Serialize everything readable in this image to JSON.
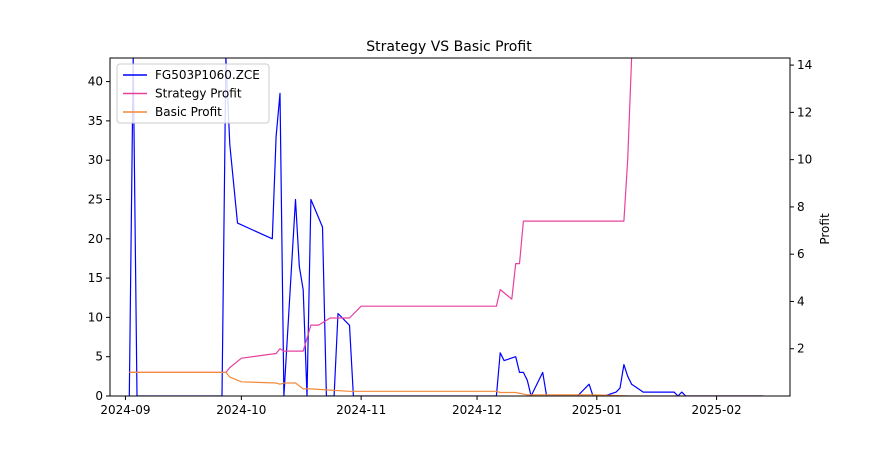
{
  "chart_data": {
    "type": "line",
    "title": "Strategy VS Basic Profit",
    "xlabel": "",
    "ylabel_left": "",
    "ylabel_right": "Profit",
    "x_ticks": [
      "2024-09",
      "2024-10",
      "2024-11",
      "2024-12",
      "2025-01",
      "2025-02"
    ],
    "x_range": [
      "2024-08-28",
      "2025-02-20"
    ],
    "ylim_left": [
      0,
      43
    ],
    "ylim_right": [
      0,
      14.3
    ],
    "y_ticks_left": [
      0,
      5,
      10,
      15,
      20,
      25,
      30,
      35,
      40
    ],
    "y_ticks_right": [
      2,
      4,
      6,
      8,
      10,
      12,
      14
    ],
    "grid": false,
    "legend_position": "top-left",
    "series": [
      {
        "name": "FG503P1060.ZCE",
        "axis": "left",
        "color": "#0000ff",
        "points": [
          [
            "2024-09-02",
            0
          ],
          [
            "2024-09-03",
            43
          ],
          [
            "2024-09-04",
            0
          ],
          [
            "2024-09-26",
            0
          ],
          [
            "2024-09-27",
            43
          ],
          [
            "2024-09-28",
            32
          ],
          [
            "2024-09-30",
            22
          ],
          [
            "2024-10-09",
            20
          ],
          [
            "2024-10-10",
            33
          ],
          [
            "2024-10-11",
            38.5
          ],
          [
            "2024-10-12",
            0
          ],
          [
            "2024-10-15",
            25
          ],
          [
            "2024-10-16",
            16.5
          ],
          [
            "2024-10-17",
            13.5
          ],
          [
            "2024-10-18",
            0
          ],
          [
            "2024-10-19",
            25
          ],
          [
            "2024-10-22",
            21.5
          ],
          [
            "2024-10-23",
            0
          ],
          [
            "2024-10-25",
            0
          ],
          [
            "2024-10-26",
            10.5
          ],
          [
            "2024-10-29",
            9
          ],
          [
            "2024-10-30",
            0
          ],
          [
            "2024-12-06",
            0
          ],
          [
            "2024-12-07",
            5.5
          ],
          [
            "2024-12-08",
            4.5
          ],
          [
            "2024-12-11",
            5
          ],
          [
            "2024-12-12",
            3
          ],
          [
            "2024-12-13",
            3
          ],
          [
            "2024-12-14",
            2
          ],
          [
            "2024-12-15",
            0
          ],
          [
            "2024-12-18",
            3
          ],
          [
            "2024-12-19",
            0
          ],
          [
            "2024-12-27",
            0
          ],
          [
            "2024-12-30",
            1.5
          ],
          [
            "2024-12-31",
            0
          ],
          [
            "2025-01-03",
            0
          ],
          [
            "2025-01-06",
            0.5
          ],
          [
            "2025-01-07",
            1
          ],
          [
            "2025-01-08",
            4
          ],
          [
            "2025-01-09",
            2.5
          ],
          [
            "2025-01-10",
            1.5
          ],
          [
            "2025-01-13",
            0.5
          ],
          [
            "2025-01-21",
            0.5
          ],
          [
            "2025-01-22",
            0
          ],
          [
            "2025-01-23",
            0.5
          ],
          [
            "2025-01-24",
            0
          ],
          [
            "2025-02-13",
            0
          ]
        ]
      },
      {
        "name": "Strategy Profit",
        "axis": "right",
        "color": "#e8409e",
        "points": [
          [
            "2024-09-02",
            1
          ],
          [
            "2024-09-27",
            1
          ],
          [
            "2024-09-28",
            1.2
          ],
          [
            "2024-10-01",
            1.6
          ],
          [
            "2024-10-10",
            1.8
          ],
          [
            "2024-10-11",
            2
          ],
          [
            "2024-10-12",
            1.9
          ],
          [
            "2024-10-17",
            1.9
          ],
          [
            "2024-10-19",
            3
          ],
          [
            "2024-10-21",
            3
          ],
          [
            "2024-10-24",
            3.3
          ],
          [
            "2024-10-29",
            3.3
          ],
          [
            "2024-11-01",
            3.8
          ],
          [
            "2024-12-06",
            3.8
          ],
          [
            "2024-12-07",
            4.5
          ],
          [
            "2024-12-10",
            4.1
          ],
          [
            "2024-12-11",
            5.6
          ],
          [
            "2024-12-12",
            5.6
          ],
          [
            "2024-12-13",
            7.4
          ],
          [
            "2025-01-08",
            7.4
          ],
          [
            "2025-01-09",
            10
          ],
          [
            "2025-01-10",
            14.3
          ]
        ]
      },
      {
        "name": "Basic Profit",
        "axis": "right",
        "color": "#f08a3c",
        "points": [
          [
            "2024-09-02",
            1
          ],
          [
            "2024-09-27",
            1
          ],
          [
            "2024-09-28",
            0.8
          ],
          [
            "2024-10-01",
            0.6
          ],
          [
            "2024-10-10",
            0.55
          ],
          [
            "2024-10-11",
            0.5
          ],
          [
            "2024-10-12",
            0.55
          ],
          [
            "2024-10-15",
            0.55
          ],
          [
            "2024-10-17",
            0.3
          ],
          [
            "2024-10-19",
            0.3
          ],
          [
            "2024-10-24",
            0.25
          ],
          [
            "2024-10-29",
            0.2
          ],
          [
            "2024-12-06",
            0.2
          ],
          [
            "2024-12-07",
            0.15
          ],
          [
            "2024-12-11",
            0.15
          ],
          [
            "2024-12-14",
            0.05
          ],
          [
            "2024-12-18",
            0.05
          ],
          [
            "2024-12-31",
            0.05
          ],
          [
            "2025-01-10",
            0
          ],
          [
            "2025-02-13",
            0
          ]
        ]
      }
    ]
  }
}
